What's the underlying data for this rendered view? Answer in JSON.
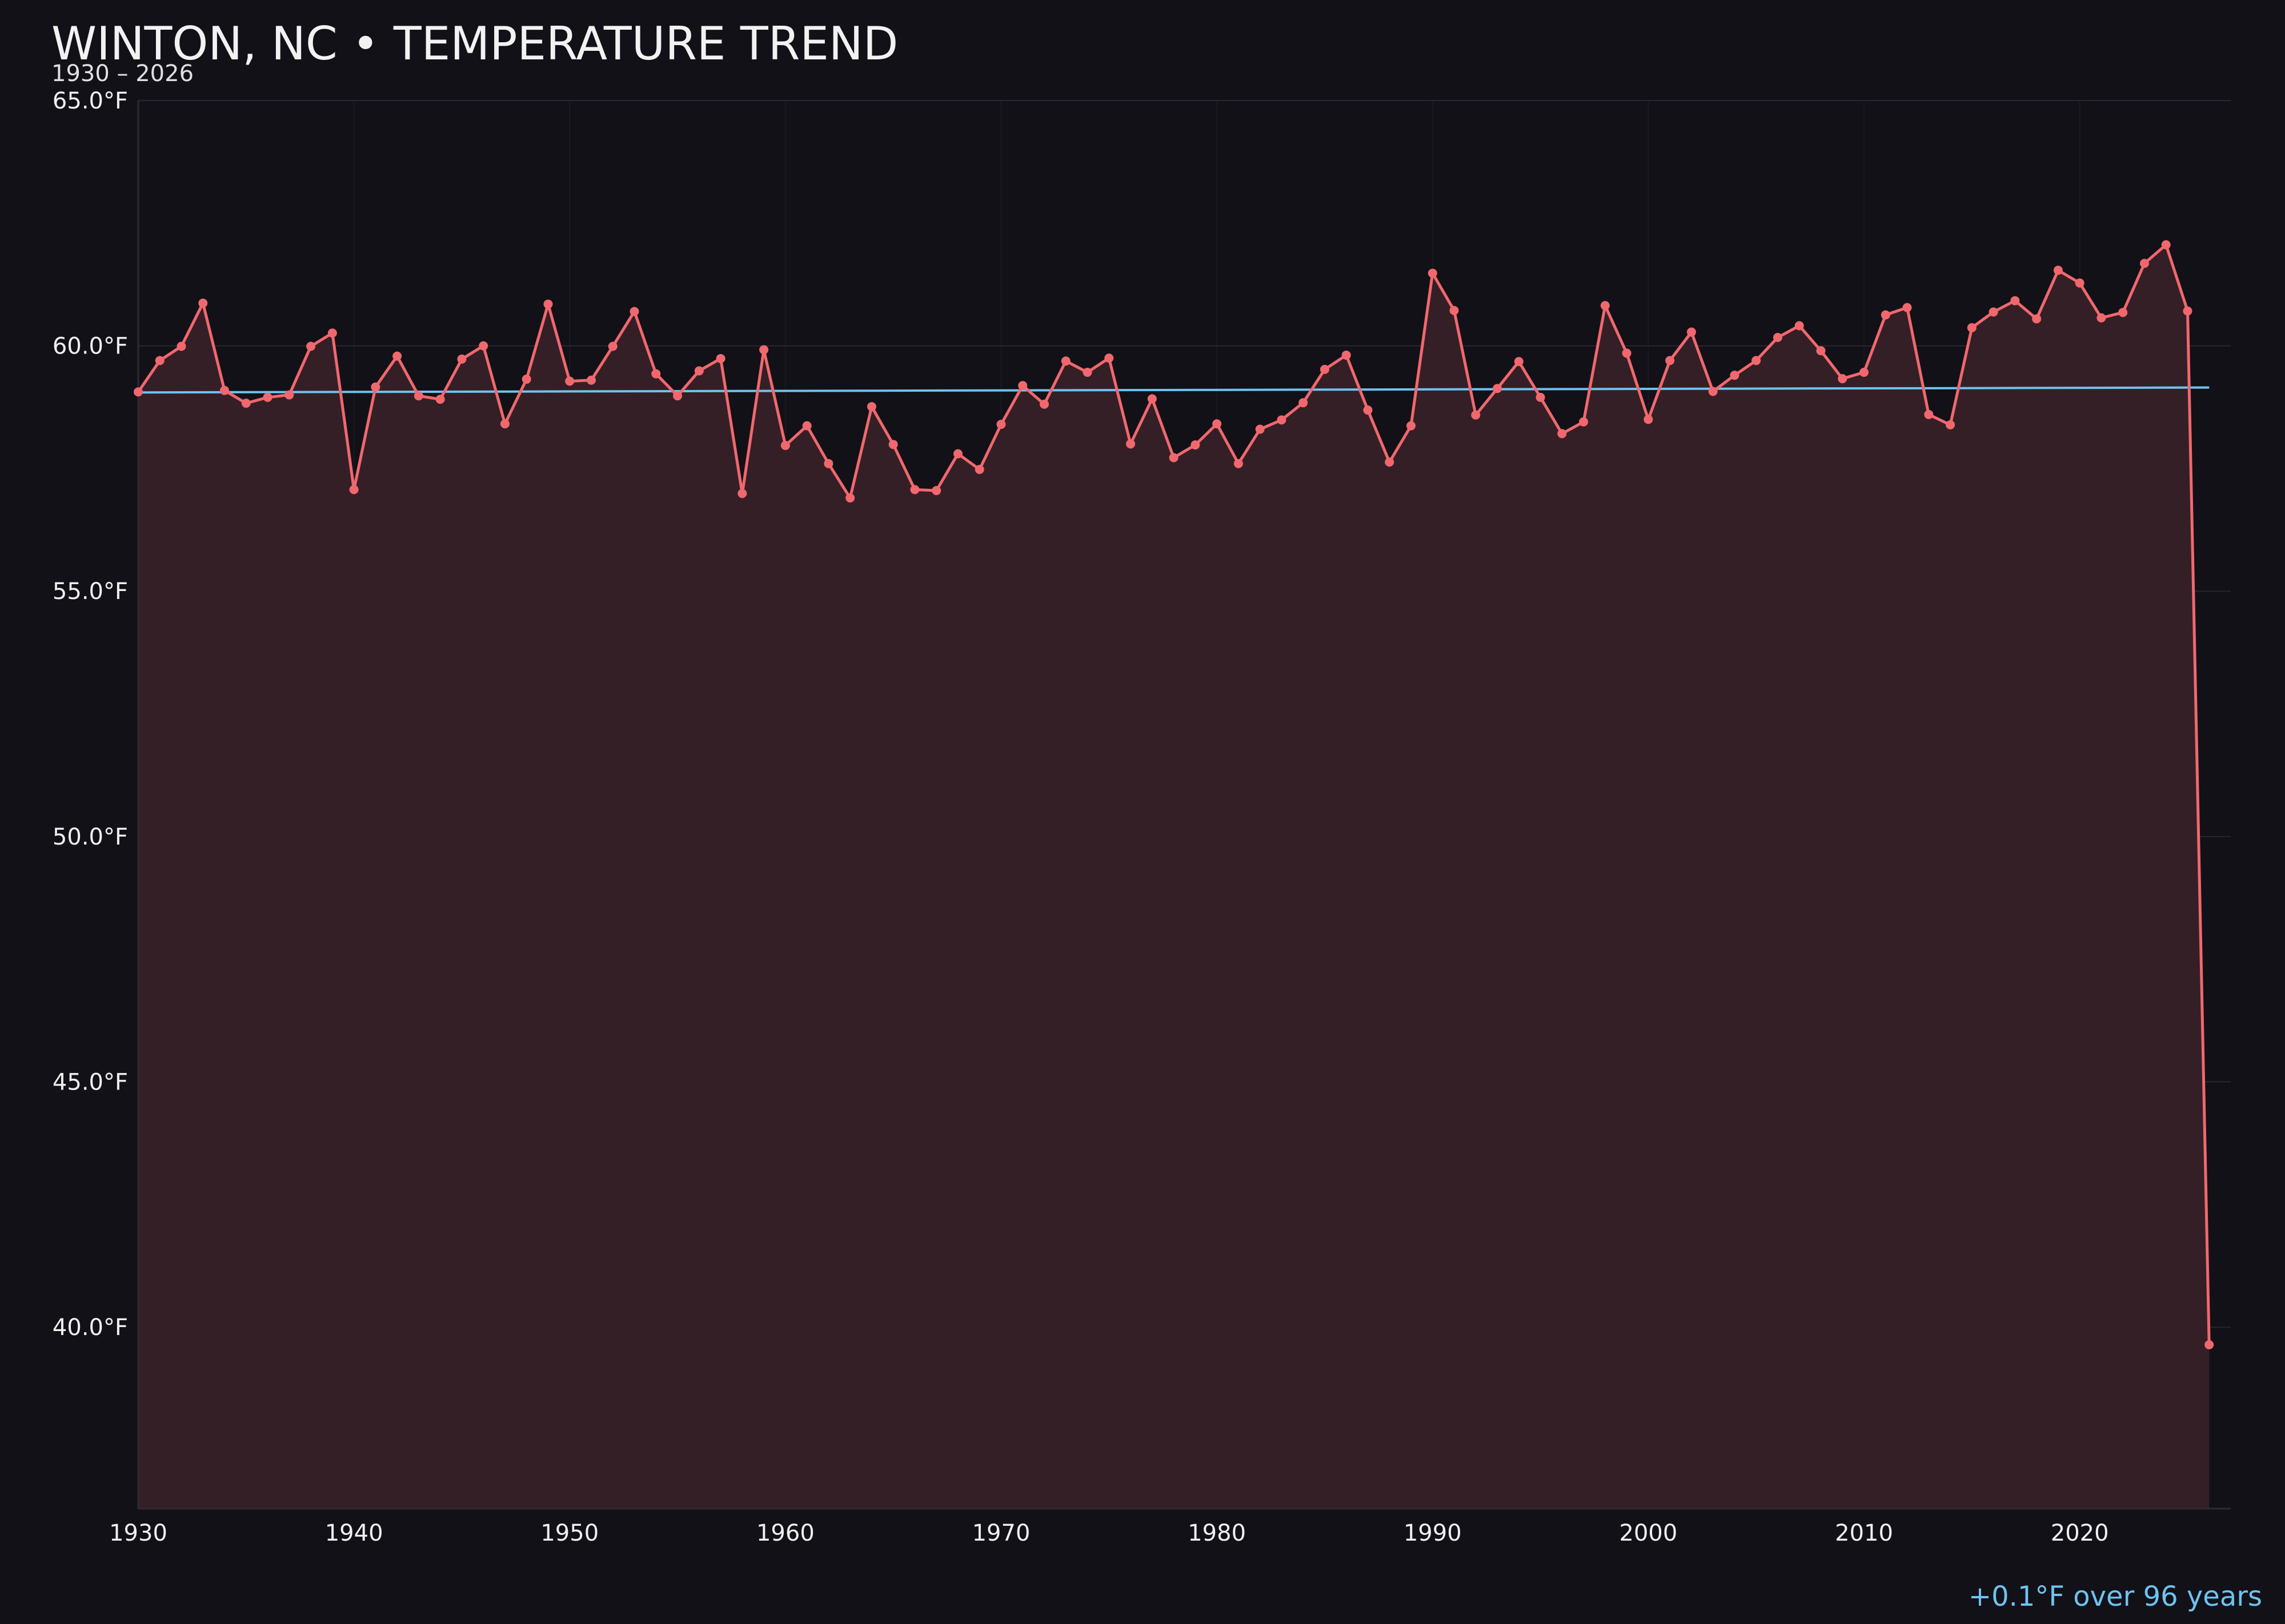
{
  "header": {
    "title": "WINTON, NC • TEMPERATURE TREND",
    "subtitle": "1930 – 2026"
  },
  "footer": {
    "trend_summary": "+0.1°F over 96 years"
  },
  "colors": {
    "background": "#121118",
    "series_line": "#f0686e",
    "series_fill": "#351f26",
    "trend_line": "#6ec3f0",
    "grid": "#2a2530"
  },
  "chart_data": {
    "type": "line",
    "title": "WINTON, NC • TEMPERATURE TREND",
    "subtitle": "1930 – 2026",
    "xlabel": "",
    "ylabel": "",
    "xlim": [
      1930,
      2027
    ],
    "ylim": [
      36.3,
      65.0
    ],
    "x_ticks": [
      1930,
      1940,
      1950,
      1960,
      1970,
      1980,
      1990,
      2000,
      2010,
      2020
    ],
    "y_ticks": [
      {
        "value": 40,
        "label": "40.0°F"
      },
      {
        "value": 45,
        "label": "45.0°F"
      },
      {
        "value": 50,
        "label": "50.0°F"
      },
      {
        "value": 55,
        "label": "55.0°F"
      },
      {
        "value": 60,
        "label": "60.0°F"
      },
      {
        "value": 65,
        "label": "65.0°F"
      }
    ],
    "grid": true,
    "area_fill": true,
    "series": [
      {
        "x": [
          1930,
          1931,
          1932,
          1933,
          1934,
          1935,
          1936,
          1937,
          1938,
          1939,
          1940,
          1941,
          1942,
          1943,
          1944,
          1945,
          1946,
          1947,
          1948,
          1949,
          1950,
          1951,
          1952,
          1953,
          1954,
          1955,
          1956,
          1957,
          1958,
          1959,
          1960,
          1961,
          1962,
          1963,
          1964,
          1965,
          1966,
          1967,
          1968,
          1969,
          1970,
          1971,
          1972,
          1973,
          1974,
          1975,
          1976,
          1977,
          1978,
          1979,
          1980,
          1981,
          1982,
          1983,
          1984,
          1985,
          1986,
          1987,
          1988,
          1989,
          1990,
          1991,
          1992,
          1993,
          1994,
          1995,
          1996,
          1997,
          1998,
          1999,
          2000,
          2001,
          2002,
          2003,
          2004,
          2005,
          2006,
          2007,
          2008,
          2009,
          2010,
          2011,
          2012,
          2013,
          2014,
          2015,
          2016,
          2017,
          2018,
          2019,
          2020,
          2021,
          2022,
          2023,
          2024,
          2025,
          2026
        ],
        "values": [
          59.06,
          59.7,
          59.99,
          60.87,
          59.09,
          58.83,
          58.95,
          59.0,
          59.99,
          60.26,
          57.07,
          59.16,
          59.79,
          58.98,
          58.91,
          59.73,
          60.0,
          58.41,
          59.32,
          60.85,
          59.28,
          59.3,
          59.99,
          60.7,
          59.43,
          58.98,
          59.49,
          59.74,
          56.99,
          59.92,
          57.97,
          58.37,
          57.6,
          56.9,
          58.76,
          57.99,
          57.07,
          57.05,
          57.8,
          57.48,
          58.4,
          59.19,
          58.81,
          59.69,
          59.46,
          59.75,
          58.0,
          58.92,
          57.72,
          57.98,
          58.41,
          57.6,
          58.3,
          58.49,
          58.84,
          59.52,
          59.81,
          58.69,
          57.63,
          58.37,
          61.48,
          60.72,
          58.59,
          59.13,
          59.68,
          58.95,
          58.21,
          58.45,
          60.82,
          59.85,
          58.5,
          59.7,
          60.28,
          59.07,
          59.4,
          59.7,
          60.17,
          60.41,
          59.9,
          59.33,
          59.46,
          60.63,
          60.78,
          58.6,
          58.39,
          60.37,
          60.69,
          60.92,
          60.55,
          61.54,
          61.28,
          60.57,
          60.68,
          61.68,
          62.06,
          60.71,
          39.64
        ]
      }
    ],
    "trend": {
      "x": [
        1930,
        2026
      ],
      "values": [
        59.05,
        59.15
      ],
      "label": "+0.1°F over 96 years"
    }
  }
}
